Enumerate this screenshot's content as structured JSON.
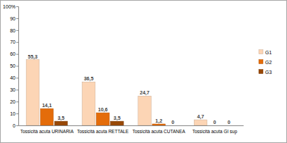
{
  "chart_data": {
    "type": "bar",
    "categories": [
      "Tossicità acuta URINARIA",
      "Tossicità acuta RETTALE",
      "Tossicità acuta CUTANEA",
      "Tossicità acuta GI sup"
    ],
    "series": [
      {
        "name": "G1",
        "color": "#fcd5b5",
        "values": [
          55.3,
          36.5,
          24.7,
          4.7
        ],
        "value_labels": [
          "55,3",
          "36,5",
          "24,7",
          "4,7"
        ]
      },
      {
        "name": "G2",
        "color": "#e46c0a",
        "values": [
          14.1,
          10.6,
          1.2,
          0
        ],
        "value_labels": [
          "14,1",
          "10,6",
          "1,2",
          "0"
        ]
      },
      {
        "name": "G3",
        "color": "#984807",
        "values": [
          3.5,
          3.5,
          0,
          0
        ],
        "value_labels": [
          "3,5",
          "3,5",
          "0",
          "0"
        ]
      }
    ],
    "ylim": [
      0,
      100
    ],
    "yticks": [
      0,
      10,
      20,
      30,
      40,
      50,
      60,
      70,
      80,
      90,
      {
        "value": 100,
        "label": "100%"
      }
    ],
    "grid": false,
    "legend": "right",
    "data_labels": true
  }
}
